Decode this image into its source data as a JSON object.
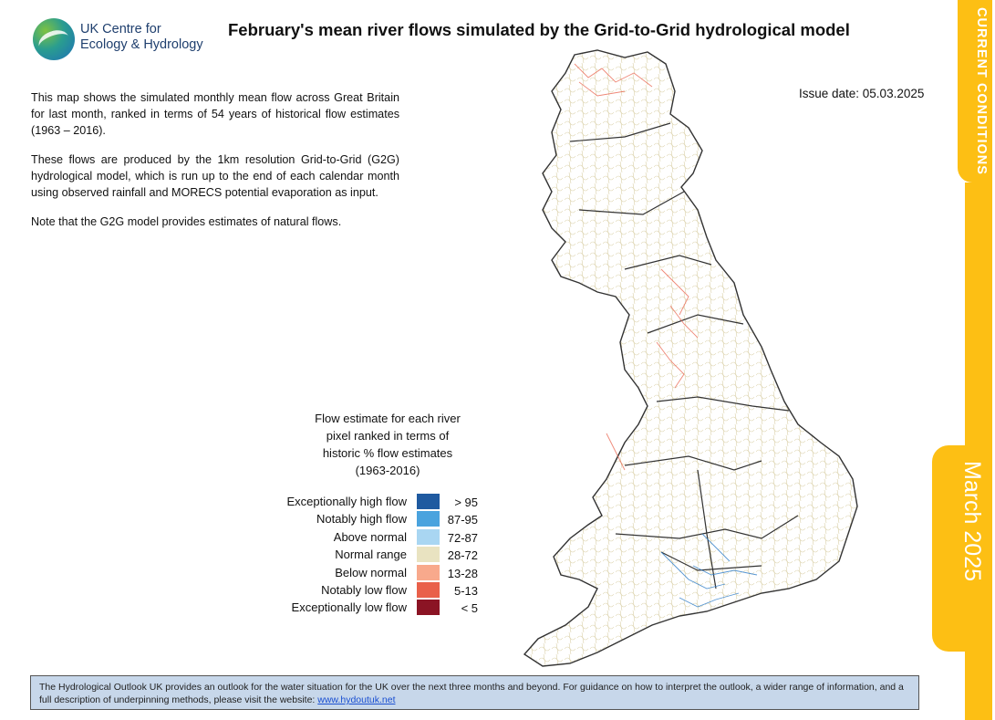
{
  "header": {
    "logo_line1": "UK Centre for",
    "logo_line2": "Ecology & Hydrology",
    "title": "February's mean river flows simulated by the Grid-to-Grid hydrological model",
    "issue_date": "Issue date: 05.03.2025"
  },
  "intro": {
    "p1": "This map shows the simulated monthly mean flow across Great Britain for last month, ranked in terms of 54 years of historical flow estimates (1963 – 2016).",
    "p2": "These flows are produced by the 1km resolution Grid-to-Grid (G2G) hydrological model, which is run up to the end of each calendar month using observed rainfall and MORECS potential evaporation as input.",
    "p3": "Note that the G2G model provides estimates of natural flows."
  },
  "legend": {
    "title_line1": "Flow estimate for each river",
    "title_line2": "pixel ranked in terms of",
    "title_line3": "historic % flow estimates",
    "title_line4": "(1963-2016)",
    "items": [
      {
        "label": "Exceptionally high flow",
        "range": "> 95",
        "color": "#1f5aa0"
      },
      {
        "label": "Notably high flow",
        "range": "87-95",
        "color": "#4aa3de"
      },
      {
        "label": "Above normal",
        "range": "72-87",
        "color": "#a9d6f2"
      },
      {
        "label": "Normal range",
        "range": "28-72",
        "color": "#e9e3c1"
      },
      {
        "label": "Below normal",
        "range": "13-28",
        "color": "#f8a98c"
      },
      {
        "label": "Notably low flow",
        "range": "5-13",
        "color": "#e9604a"
      },
      {
        "label": "Exceptionally low flow",
        "range": "< 5",
        "color": "#8b1424"
      }
    ]
  },
  "side_tabs": {
    "current_conditions": "CURRENT CONDITIONS",
    "month": "March 2025"
  },
  "footer": {
    "text": "The Hydrological Outlook UK provides an outlook for the water situation for the UK over the next three months and beyond. For guidance on how to interpret the outlook, a wider range of information, and a full description of underpinning methods, please visit the website:",
    "link": "www.hydoutuk.net"
  }
}
